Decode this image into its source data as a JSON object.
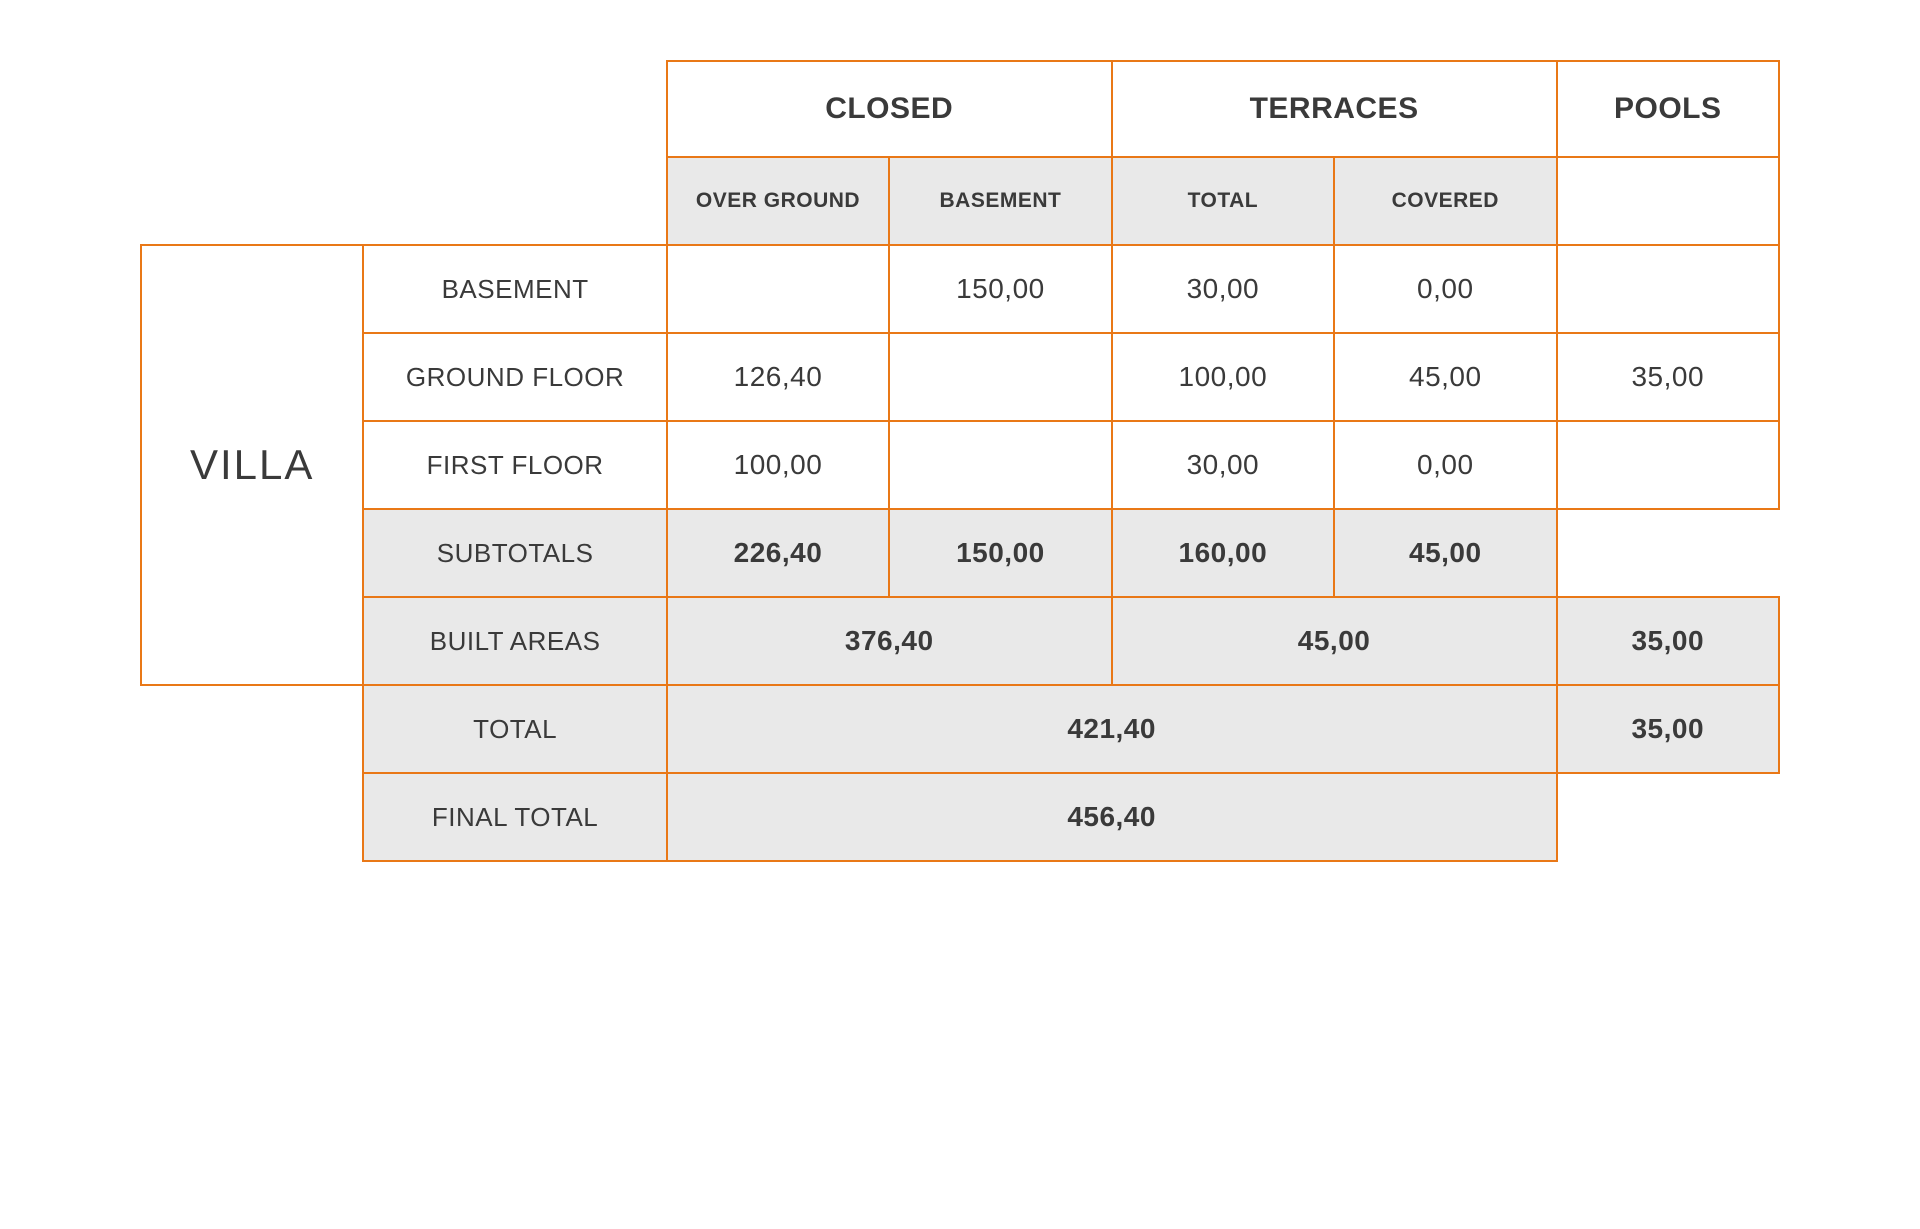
{
  "side_label": "VILLA",
  "headers": {
    "closed": "CLOSED",
    "terraces": "TERRACES",
    "pools": "POOLS",
    "over_ground": "OVER GROUND",
    "basement": "BASEMENT",
    "total": "TOTAL",
    "covered": "COVERED"
  },
  "row_labels": {
    "basement": "BASEMENT",
    "ground_floor": "GROUND FLOOR",
    "first_floor": "FIRST FLOOR",
    "subtotals": "SUBTOTALS",
    "built_areas": "BUILT AREAS",
    "total": "TOTAL",
    "final_total": "FINAL TOTAL"
  },
  "rows": {
    "basement": {
      "over_ground": "",
      "basement": "150,00",
      "t_total": "30,00",
      "t_covered": "0,00",
      "pools": ""
    },
    "ground_floor": {
      "over_ground": "126,40",
      "basement": "",
      "t_total": "100,00",
      "t_covered": "45,00",
      "pools": "35,00"
    },
    "first_floor": {
      "over_ground": "100,00",
      "basement": "",
      "t_total": "30,00",
      "t_covered": "0,00",
      "pools": ""
    }
  },
  "subtotals": {
    "over_ground": "226,40",
    "basement": "150,00",
    "t_total": "160,00",
    "t_covered": "45,00"
  },
  "built_areas": {
    "closed": "376,40",
    "terraces": "45,00",
    "pools": "35,00"
  },
  "total": {
    "main": "421,40",
    "pools": "35,00"
  },
  "final_total": "456,40",
  "style": {
    "border_color": "#e97817",
    "shaded_bg": "#e9e9e9",
    "text_color": "#3a3a3a",
    "background": "#ffffff"
  }
}
